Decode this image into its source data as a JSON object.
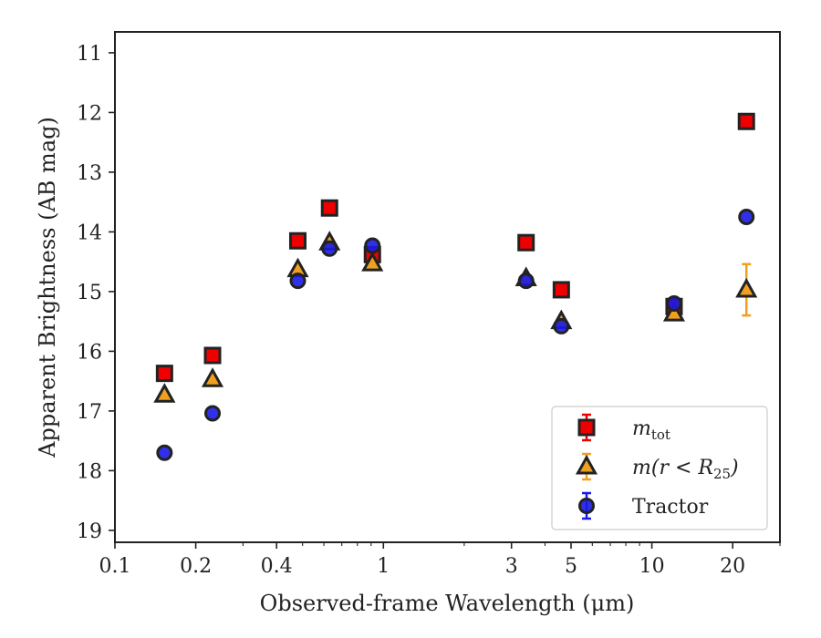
{
  "chart_data": {
    "type": "scatter",
    "xlabel": "Observed-frame Wavelength (μm)",
    "ylabel": "Apparent Brightness (AB mag)",
    "xscale": "log",
    "xlim": [
      0.1,
      30
    ],
    "ylim": [
      19.2,
      10.65
    ],
    "y_inverted": true,
    "x_ticks": [
      0.1,
      0.2,
      0.4,
      1,
      3,
      5,
      10,
      20
    ],
    "x_tick_labels": [
      "0.1",
      "0.2",
      "0.4",
      "1",
      "3",
      "5",
      "10",
      "20"
    ],
    "y_ticks": [
      11,
      12,
      13,
      14,
      15,
      16,
      17,
      18,
      19
    ],
    "y_tick_labels": [
      "11",
      "12",
      "13",
      "14",
      "15",
      "16",
      "17",
      "18",
      "19"
    ],
    "grid": false,
    "legend_position": "lower-right",
    "series": [
      {
        "name": "m_tot",
        "legend_label": "m",
        "legend_subscript": "tot",
        "marker": "square",
        "face_color": "#ee0000",
        "edge_color": "#222222",
        "points": [
          {
            "x": 0.153,
            "y": 16.37
          },
          {
            "x": 0.231,
            "y": 16.07
          },
          {
            "x": 0.48,
            "y": 14.15
          },
          {
            "x": 0.63,
            "y": 13.6
          },
          {
            "x": 0.91,
            "y": 14.38
          },
          {
            "x": 3.4,
            "y": 14.18
          },
          {
            "x": 4.6,
            "y": 14.97
          },
          {
            "x": 12.1,
            "y": 15.25
          },
          {
            "x": 22.5,
            "y": 12.15
          }
        ]
      },
      {
        "name": "m(r < R_25)",
        "legend_label": "m(r < R",
        "legend_subscript": "25",
        "legend_suffix": ")",
        "marker": "triangle",
        "face_color": "#f0a020",
        "edge_color": "#222222",
        "points": [
          {
            "x": 0.153,
            "y": 16.73
          },
          {
            "x": 0.231,
            "y": 16.47
          },
          {
            "x": 0.48,
            "y": 14.63
          },
          {
            "x": 0.63,
            "y": 14.18
          },
          {
            "x": 0.91,
            "y": 14.53
          },
          {
            "x": 3.4,
            "y": 14.78
          },
          {
            "x": 4.6,
            "y": 15.5
          },
          {
            "x": 12.1,
            "y": 15.37
          },
          {
            "x": 22.5,
            "y": 14.97,
            "err": 0.43
          }
        ]
      },
      {
        "name": "Tractor",
        "legend_label": "Tractor",
        "marker": "circle",
        "face_color": "#1a1ae6",
        "edge_color": "#222222",
        "points": [
          {
            "x": 0.153,
            "y": 17.7
          },
          {
            "x": 0.231,
            "y": 17.04
          },
          {
            "x": 0.48,
            "y": 14.82
          },
          {
            "x": 0.63,
            "y": 14.28
          },
          {
            "x": 0.91,
            "y": 14.23
          },
          {
            "x": 3.4,
            "y": 14.82
          },
          {
            "x": 4.6,
            "y": 15.58
          },
          {
            "x": 12.1,
            "y": 15.2
          },
          {
            "x": 22.5,
            "y": 13.75
          }
        ]
      }
    ]
  }
}
